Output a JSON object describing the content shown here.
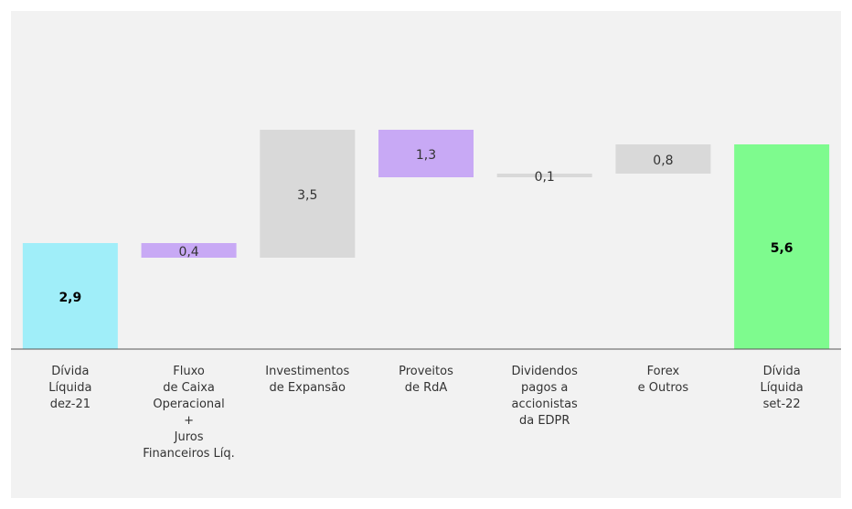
{
  "chart_data": {
    "type": "waterfall",
    "categories": [
      "Dívida\nLíquida\ndez-21",
      "Fluxo\nde Caixa\nOperacional\n+\nJuros\nFinanceiros Líq.",
      "Investimentos\nde Expansão",
      "Proveitos\nde RdA",
      "Dividendos\npagos a\naccionistas\nda EDPR",
      "Forex\ne Outros",
      "Dívida\nLíquida\nset-22"
    ],
    "values": [
      2.9,
      0.4,
      3.5,
      1.3,
      0.1,
      0.8,
      5.6
    ],
    "value_labels": [
      "2,9",
      "0,4",
      "3,5",
      "1,3",
      "0,1",
      "0,8",
      "5,6"
    ],
    "measures": [
      "total",
      "decrease",
      "increase",
      "decrease",
      "increase",
      "increase",
      "total"
    ],
    "colors": [
      "#a0eef9",
      "#c8a9f5",
      "#d9d9d9",
      "#c8a9f5",
      "#d9d9d9",
      "#d9d9d9",
      "#7efb8e"
    ],
    "ylim": [
      0,
      8
    ]
  }
}
